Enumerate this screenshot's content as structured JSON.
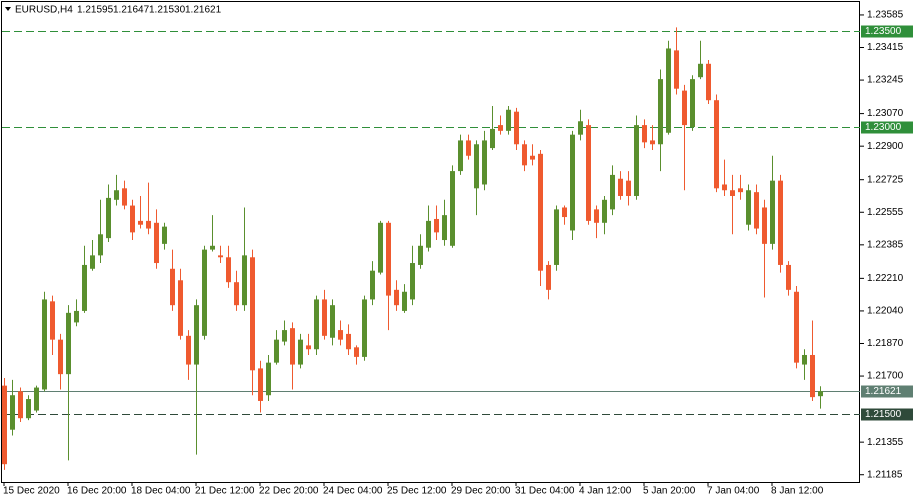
{
  "chart_data": {
    "type": "candlestick",
    "header": {
      "symbol": "EURUSD,H4",
      "quote": [
        "1.21595",
        "1.21647",
        "1.21530",
        "1.21621"
      ]
    },
    "categories": [
      "15 Dec 2020",
      null,
      null,
      null,
      null,
      null,
      null,
      null,
      "16 Dec 20:00",
      null,
      null,
      null,
      null,
      null,
      null,
      null,
      "18 Dec 04:00",
      null,
      null,
      null,
      null,
      null,
      null,
      null,
      "21 Dec 12:00",
      null,
      null,
      null,
      null,
      null,
      null,
      null,
      "22 Dec 20:00",
      null,
      null,
      null,
      null,
      null,
      null,
      null,
      "24 Dec 04:00",
      null,
      null,
      null,
      null,
      null,
      null,
      null,
      "25 Dec 12:00",
      null,
      null,
      null,
      null,
      null,
      null,
      null,
      "29 Dec 20:00",
      null,
      null,
      null,
      null,
      null,
      null,
      null,
      "31 Dec 04:00",
      null,
      null,
      null,
      null,
      null,
      null,
      null,
      "4 Jan 12:00",
      null,
      null,
      null,
      null,
      null,
      null,
      null,
      "5 Jan 20:00",
      null,
      null,
      null,
      null,
      null,
      null,
      null,
      "7 Jan 04:00",
      null,
      null,
      null,
      null,
      null,
      null,
      null,
      "8 Jan 12:00",
      null,
      null,
      null,
      null,
      null,
      null
    ],
    "open": [
      1.2165,
      1.2142,
      1.2162,
      1.2148,
      1.2152,
      1.2163,
      1.2209,
      1.2189,
      1.2171,
      1.2198,
      1.2204,
      1.2226,
      1.2233,
      1.2242,
      1.2262,
      1.2268,
      1.2259,
      1.2251,
      1.2251,
      1.225,
      1.2239,
      1.2226,
      1.222,
      1.2191,
      1.2176,
      1.2191,
      1.2236,
      1.2233,
      1.2232,
      1.2219,
      1.2207,
      1.2232,
      1.2174,
      1.216,
      1.2177,
      1.2188,
      1.2195,
      1.2176,
      1.2186,
      1.2184,
      1.221,
      1.219,
      1.2194,
      1.2192,
      1.2185,
      1.218,
      1.221,
      1.2224,
      1.225,
      1.2215,
      1.2204,
      1.221,
      1.2228,
      1.2237,
      1.2252,
      1.2241,
      1.2238,
      1.2277,
      1.2293,
      1.2268,
      1.227,
      1.2289,
      1.2301,
      1.2298,
      1.2308,
      1.2291,
      1.2285,
      1.2286,
      1.2228,
      1.2228,
      1.2258,
      1.2246,
      1.2296,
      1.2301,
      1.2257,
      1.225,
      1.2257,
      1.2273,
      1.2272,
      1.2264,
      1.2301,
      1.2293,
      1.2291,
      1.2297,
      1.234,
      1.2319,
      1.23,
      1.2326,
      1.2333,
      1.2314,
      1.227,
      1.2267,
      1.2268,
      1.2249,
      1.2266,
      1.2258,
      1.2239,
      1.2272,
      1.2228,
      1.2214,
      1.2176,
      1.2181,
      1.21595
    ],
    "high": [
      1.2169,
      1.2168,
      1.2164,
      1.216,
      1.2165,
      1.2214,
      1.2212,
      1.2192,
      1.2207,
      1.221,
      1.2238,
      1.2241,
      1.2262,
      1.227,
      1.2275,
      1.2272,
      1.2262,
      1.2264,
      1.2271,
      1.2257,
      1.225,
      1.2236,
      1.2226,
      1.2194,
      1.221,
      1.2238,
      1.2254,
      1.2238,
      1.2238,
      1.2225,
      1.2258,
      1.2236,
      1.2178,
      1.2181,
      1.2194,
      1.2199,
      1.2198,
      1.2192,
      1.2192,
      1.2212,
      1.2215,
      1.221,
      1.2199,
      1.2197,
      1.2186,
      1.2212,
      1.223,
      1.2251,
      1.2251,
      1.222,
      1.2218,
      1.2238,
      1.2244,
      1.2259,
      1.2259,
      1.2262,
      1.228,
      1.2296,
      1.2296,
      1.2293,
      1.2298,
      1.2311,
      1.2306,
      1.2311,
      1.231,
      1.2293,
      1.2291,
      1.2288,
      1.223,
      1.2259,
      1.2259,
      1.2298,
      1.2309,
      1.2304,
      1.2259,
      1.2264,
      1.228,
      1.2277,
      1.2277,
      1.2306,
      1.2304,
      1.2301,
      1.233,
      1.2345,
      1.2352,
      1.2322,
      1.2327,
      1.2345,
      1.2335,
      1.2317,
      1.2283,
      1.2275,
      1.2275,
      1.227,
      1.227,
      1.2262,
      1.2285,
      1.2275,
      1.223,
      1.2217,
      1.2184,
      1.2199,
      1.21647
    ],
    "low": [
      1.2121,
      1.2139,
      1.2146,
      1.2147,
      1.2151,
      1.2162,
      1.2181,
      1.2163,
      1.2126,
      1.2196,
      1.2203,
      1.2225,
      1.2229,
      1.224,
      1.2259,
      1.2257,
      1.2241,
      1.2247,
      1.2244,
      1.2226,
      1.2236,
      1.2204,
      1.2189,
      1.2168,
      1.2129,
      1.2189,
      1.2235,
      1.2229,
      1.2216,
      1.2204,
      1.2204,
      1.216,
      1.2151,
      1.2157,
      1.2176,
      1.2186,
      1.2163,
      1.2174,
      1.2181,
      1.2181,
      1.2189,
      1.2186,
      1.2186,
      1.2181,
      1.2176,
      1.2178,
      1.2207,
      1.2223,
      1.2194,
      1.2204,
      1.2203,
      1.2207,
      1.2226,
      1.2235,
      1.2241,
      1.2238,
      1.2237,
      1.2275,
      1.2283,
      1.2254,
      1.2267,
      1.2288,
      1.2296,
      1.2296,
      1.2288,
      1.2277,
      1.228,
      1.2217,
      1.221,
      1.2225,
      1.2249,
      1.2241,
      1.2293,
      1.2249,
      1.2242,
      1.2244,
      1.2254,
      1.2262,
      1.2259,
      1.2262,
      1.2289,
      1.2288,
      1.2277,
      1.2296,
      1.2317,
      1.2267,
      1.2298,
      1.2325,
      1.2312,
      1.2266,
      1.2264,
      1.2244,
      1.2262,
      1.2246,
      1.2244,
      1.2211,
      1.2236,
      1.2224,
      1.2212,
      1.2174,
      1.2168,
      1.2157,
      1.2153
    ],
    "close": [
      1.2124,
      1.216,
      1.2148,
      1.2158,
      1.2164,
      1.221,
      1.2189,
      1.2171,
      1.2203,
      1.2204,
      1.2228,
      1.2233,
      1.2244,
      1.2263,
      1.2267,
      1.2259,
      1.2245,
      1.2249,
      1.2247,
      1.2229,
      1.2248,
      1.2207,
      1.2191,
      1.2176,
      1.2207,
      1.2236,
      1.2238,
      1.2232,
      1.2219,
      1.2207,
      1.2233,
      1.2173,
      1.2157,
      1.2177,
      1.2189,
      1.2194,
      1.2176,
      1.2189,
      1.2184,
      1.221,
      1.2191,
      1.2207,
      1.2189,
      1.2184,
      1.218,
      1.221,
      1.2225,
      1.225,
      1.2212,
      1.2207,
      1.2214,
      1.2229,
      1.2238,
      1.2251,
      1.2245,
      1.2254,
      1.2277,
      1.2293,
      1.2285,
      1.2291,
      1.2293,
      1.2299,
      1.2298,
      1.2309,
      1.2291,
      1.228,
      1.2283,
      1.2225,
      1.2215,
      1.2257,
      1.2253,
      1.2296,
      1.2303,
      1.2251,
      1.225,
      1.2262,
      1.2275,
      1.2264,
      1.2264,
      1.2301,
      1.2292,
      1.2291,
      1.2325,
      1.2341,
      1.232,
      1.2301,
      1.2325,
      1.2333,
      1.2314,
      1.2268,
      1.2267,
      1.2264,
      1.2266,
      1.2267,
      1.2247,
      1.2239,
      1.2272,
      1.2228,
      1.2215,
      1.2177,
      1.2181,
      1.2159,
      1.21621
    ],
    "up_color": "#5a8f2e",
    "down_color": "#ef5a2f",
    "ylim": [
      1.21147,
      1.23663
    ],
    "yticks": [
      1.23585,
      1.23415,
      1.23245,
      {
        "value": 1.2307,
        "label": "1.23070"
      },
      {
        "value": 1.229,
        "label": "1.22900"
      },
      1.22725,
      1.22555,
      1.22385,
      {
        "value": 1.2221,
        "label": "1.22210"
      },
      {
        "value": 1.2204,
        "label": "1.22040"
      },
      {
        "value": 1.2187,
        "label": "1.21870"
      },
      {
        "value": 1.217,
        "label": "1.21700"
      },
      1.21355,
      1.21185
    ],
    "levels": [
      {
        "value": 1.235,
        "label": "1.23500",
        "style": "dashed",
        "color": "#2f8f3a"
      },
      {
        "value": 1.23,
        "label": "1.23000",
        "style": "dashed",
        "color": "#2f8f3a"
      },
      {
        "value": 1.21621,
        "label": "1.21621",
        "style": "solid",
        "color": "#5f7f72"
      },
      {
        "value": 1.215,
        "label": "1.21500",
        "style": "dashed",
        "color": "#2f4a3a"
      }
    ]
  }
}
